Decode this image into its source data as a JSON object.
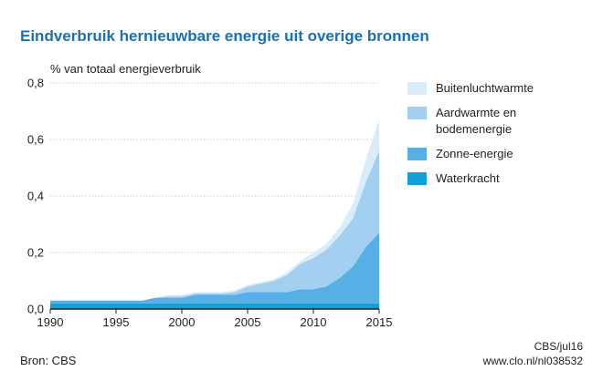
{
  "title": "Eindverbruik hernieuwbare energie uit overige bronnen",
  "source": "Bron: CBS",
  "credit_line1": "CBS/jul16",
  "credit_line2": "www.clo.nl/nl038532",
  "legend_items": [
    {
      "label": "Buitenluchtwarmte",
      "color": "#d9ecf9"
    },
    {
      "label": "Aardwarmte en bodemenergie",
      "color": "#a3cff0"
    },
    {
      "label": "Zonne-energie",
      "color": "#56b0e6"
    },
    {
      "label": "Waterkracht",
      "color": "#129fdb"
    }
  ],
  "chart_data": {
    "type": "area",
    "stacked": true,
    "title": "Eindverbruik hernieuwbare energie uit overige bronnen",
    "ylabel": "% van totaal energieverbruik",
    "xlabel": "",
    "x": [
      1990,
      1991,
      1992,
      1993,
      1994,
      1995,
      1996,
      1997,
      1998,
      1999,
      2000,
      2001,
      2002,
      2003,
      2004,
      2005,
      2006,
      2007,
      2008,
      2009,
      2010,
      2011,
      2012,
      2013,
      2014,
      2015
    ],
    "xticks": [
      1990,
      1995,
      2000,
      2005,
      2010,
      2015
    ],
    "xtick_labels": [
      "1990",
      "1995",
      "2000",
      "2005",
      "2010",
      "2015"
    ],
    "yticks": [
      0,
      0.2,
      0.4,
      0.6,
      0.8
    ],
    "ytick_labels": [
      "0,0",
      "0,2",
      "0,4",
      "0,6",
      "0,8"
    ],
    "xlim": [
      1990,
      2015
    ],
    "ylim": [
      0,
      0.8
    ],
    "grid": "horizontal",
    "legend": "right",
    "series": [
      {
        "name": "Waterkracht",
        "color": "#129fdb",
        "values": [
          0.02,
          0.02,
          0.02,
          0.02,
          0.02,
          0.02,
          0.02,
          0.02,
          0.02,
          0.02,
          0.02,
          0.02,
          0.02,
          0.02,
          0.02,
          0.02,
          0.02,
          0.02,
          0.02,
          0.02,
          0.02,
          0.02,
          0.02,
          0.02,
          0.02,
          0.02
        ]
      },
      {
        "name": "Zonne-energie",
        "color": "#56b0e6",
        "values": [
          0.01,
          0.01,
          0.01,
          0.01,
          0.01,
          0.01,
          0.01,
          0.01,
          0.02,
          0.02,
          0.02,
          0.03,
          0.03,
          0.03,
          0.03,
          0.04,
          0.04,
          0.04,
          0.04,
          0.05,
          0.05,
          0.06,
          0.09,
          0.13,
          0.2,
          0.25
        ]
      },
      {
        "name": "Aardwarmte en bodemenergie",
        "color": "#a3cff0",
        "values": [
          0,
          0,
          0,
          0,
          0,
          0,
          0,
          0,
          0,
          0.005,
          0.005,
          0.005,
          0.005,
          0.005,
          0.01,
          0.02,
          0.03,
          0.04,
          0.06,
          0.09,
          0.11,
          0.13,
          0.15,
          0.17,
          0.23,
          0.29
        ]
      },
      {
        "name": "Buitenluchtwarmte",
        "color": "#d9ecf9",
        "values": [
          0,
          0,
          0,
          0,
          0,
          0,
          0,
          0,
          0,
          0.005,
          0.005,
          0.005,
          0.005,
          0.005,
          0.005,
          0.005,
          0.005,
          0.005,
          0.01,
          0.01,
          0.02,
          0.02,
          0.03,
          0.05,
          0.08,
          0.11
        ]
      }
    ]
  }
}
